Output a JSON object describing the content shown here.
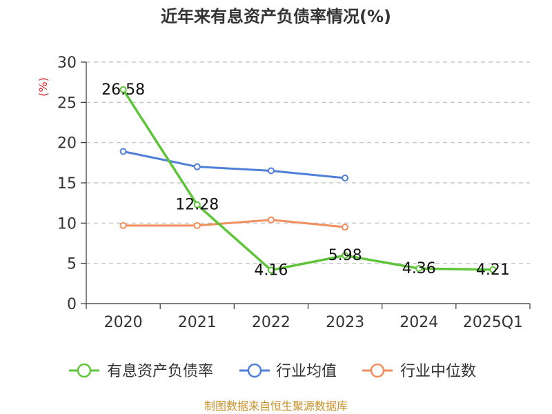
{
  "chart_data": {
    "type": "line",
    "title": "近年来有息资产负债率情况(%)",
    "ylabel": "(%)",
    "xlabel": "",
    "categories": [
      "2020",
      "2021",
      "2022",
      "2023",
      "2024",
      "2025Q1"
    ],
    "ylim": [
      0,
      30
    ],
    "yticks": [
      0,
      5,
      10,
      15,
      20,
      25,
      30
    ],
    "grid": true,
    "legend_position": "bottom",
    "series": [
      {
        "name": "有息资产负债率",
        "color": "#5ec43a",
        "values": [
          26.58,
          12.28,
          4.16,
          5.98,
          4.36,
          4.21
        ],
        "labels": [
          "26.58",
          "12.28",
          "4.16",
          "5.98",
          "4.36",
          "4.21"
        ],
        "show_labels": true
      },
      {
        "name": "行业均值",
        "color": "#4f7fd8",
        "values": [
          18.9,
          17.0,
          16.5,
          15.6,
          null,
          null
        ],
        "show_labels": false
      },
      {
        "name": "行业中位数",
        "color": "#f28e5c",
        "values": [
          9.7,
          9.7,
          10.4,
          9.5,
          null,
          null
        ],
        "show_labels": false
      }
    ],
    "ylabel_color": "#d62728",
    "source": "制图数据来自恒生聚源数据库",
    "source_color": "#c8922a"
  }
}
